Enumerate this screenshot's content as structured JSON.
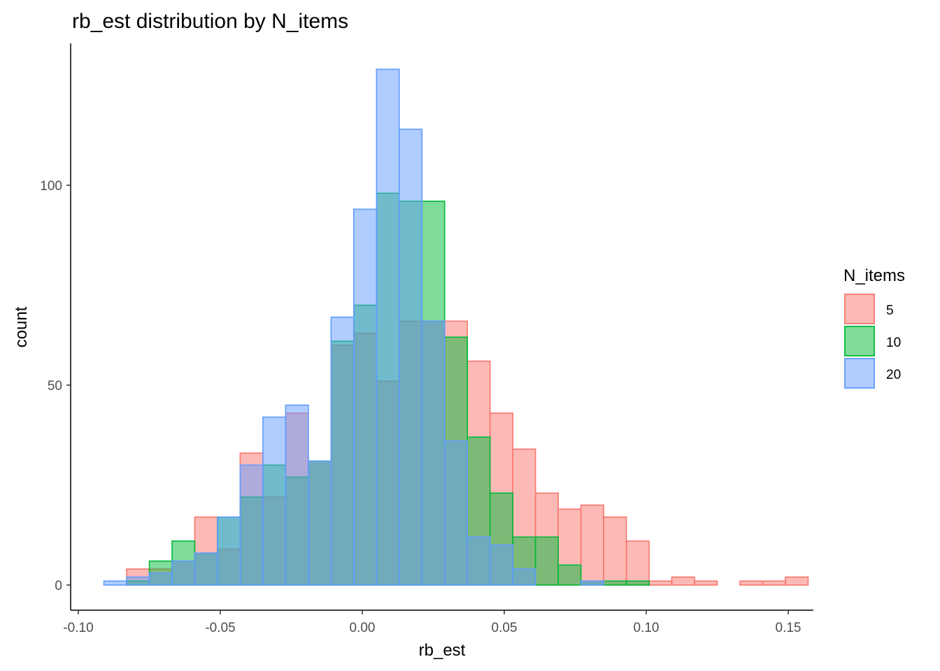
{
  "chart_data": {
    "type": "histogram",
    "title": "rb_est distribution by N_items",
    "xlabel": "rb_est",
    "ylabel": "count",
    "xlim": [
      -0.1,
      0.15
    ],
    "ylim": [
      0,
      130
    ],
    "x_ticks": [
      {
        "value": -0.1,
        "label": "-0.10"
      },
      {
        "value": -0.05,
        "label": "-0.05"
      },
      {
        "value": 0.0,
        "label": "0.00"
      },
      {
        "value": 0.05,
        "label": "0.05"
      },
      {
        "value": 0.1,
        "label": "0.10"
      },
      {
        "value": 0.15,
        "label": "0.15"
      }
    ],
    "y_ticks": [
      {
        "value": 0,
        "label": "0"
      },
      {
        "value": 50,
        "label": "50"
      },
      {
        "value": 100,
        "label": "100"
      }
    ],
    "grid": false,
    "legend": {
      "title": "N_items",
      "position": "right"
    },
    "bin_width": 0.008,
    "bin_start": -0.091,
    "series": [
      {
        "name": "5",
        "fill": "#F8766D",
        "stroke": "#F8766D",
        "values": [
          0,
          4,
          4,
          6,
          17,
          9,
          33,
          22,
          43,
          31,
          60,
          63,
          51,
          66,
          66,
          66,
          56,
          43,
          34,
          23,
          19,
          20,
          17,
          11,
          1,
          2,
          1,
          0,
          1,
          1,
          2
        ]
      },
      {
        "name": "10",
        "fill": "#00BA38",
        "stroke": "#00BA38",
        "values": [
          0,
          1,
          6,
          11,
          8,
          17,
          22,
          30,
          27,
          31,
          61,
          70,
          98,
          96,
          96,
          62,
          37,
          23,
          12,
          12,
          5,
          1,
          1,
          1,
          0,
          0,
          0,
          0,
          0,
          0,
          0
        ]
      },
      {
        "name": "20",
        "fill": "#619CFF",
        "stroke": "#619CFF",
        "values": [
          1,
          2,
          3,
          6,
          8,
          17,
          30,
          42,
          45,
          31,
          67,
          94,
          129,
          114,
          66,
          36,
          12,
          10,
          4,
          0,
          0,
          1,
          0,
          0,
          0,
          0,
          0,
          0,
          0,
          0,
          0
        ]
      }
    ]
  }
}
